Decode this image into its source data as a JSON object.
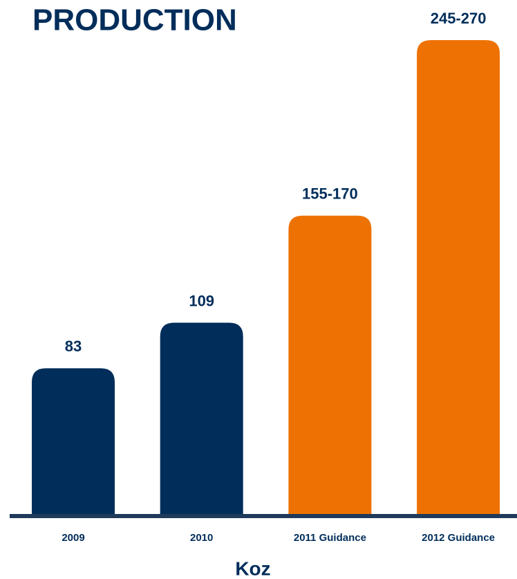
{
  "chart_data": {
    "type": "bar",
    "title": "PRODUCTION",
    "x_label": "Koz",
    "categories": [
      "2009",
      "2010",
      "2011 Guidance",
      "2012 Guidance"
    ],
    "values": [
      83,
      109,
      [
        155,
        170
      ],
      [
        245,
        270
      ]
    ],
    "value_labels": [
      "83",
      "109",
      "155-170",
      "245-270"
    ],
    "colors": [
      "#002d5a",
      "#002d5a",
      "#ee7203",
      "#ee7203"
    ],
    "ylim": [
      0,
      270
    ]
  }
}
